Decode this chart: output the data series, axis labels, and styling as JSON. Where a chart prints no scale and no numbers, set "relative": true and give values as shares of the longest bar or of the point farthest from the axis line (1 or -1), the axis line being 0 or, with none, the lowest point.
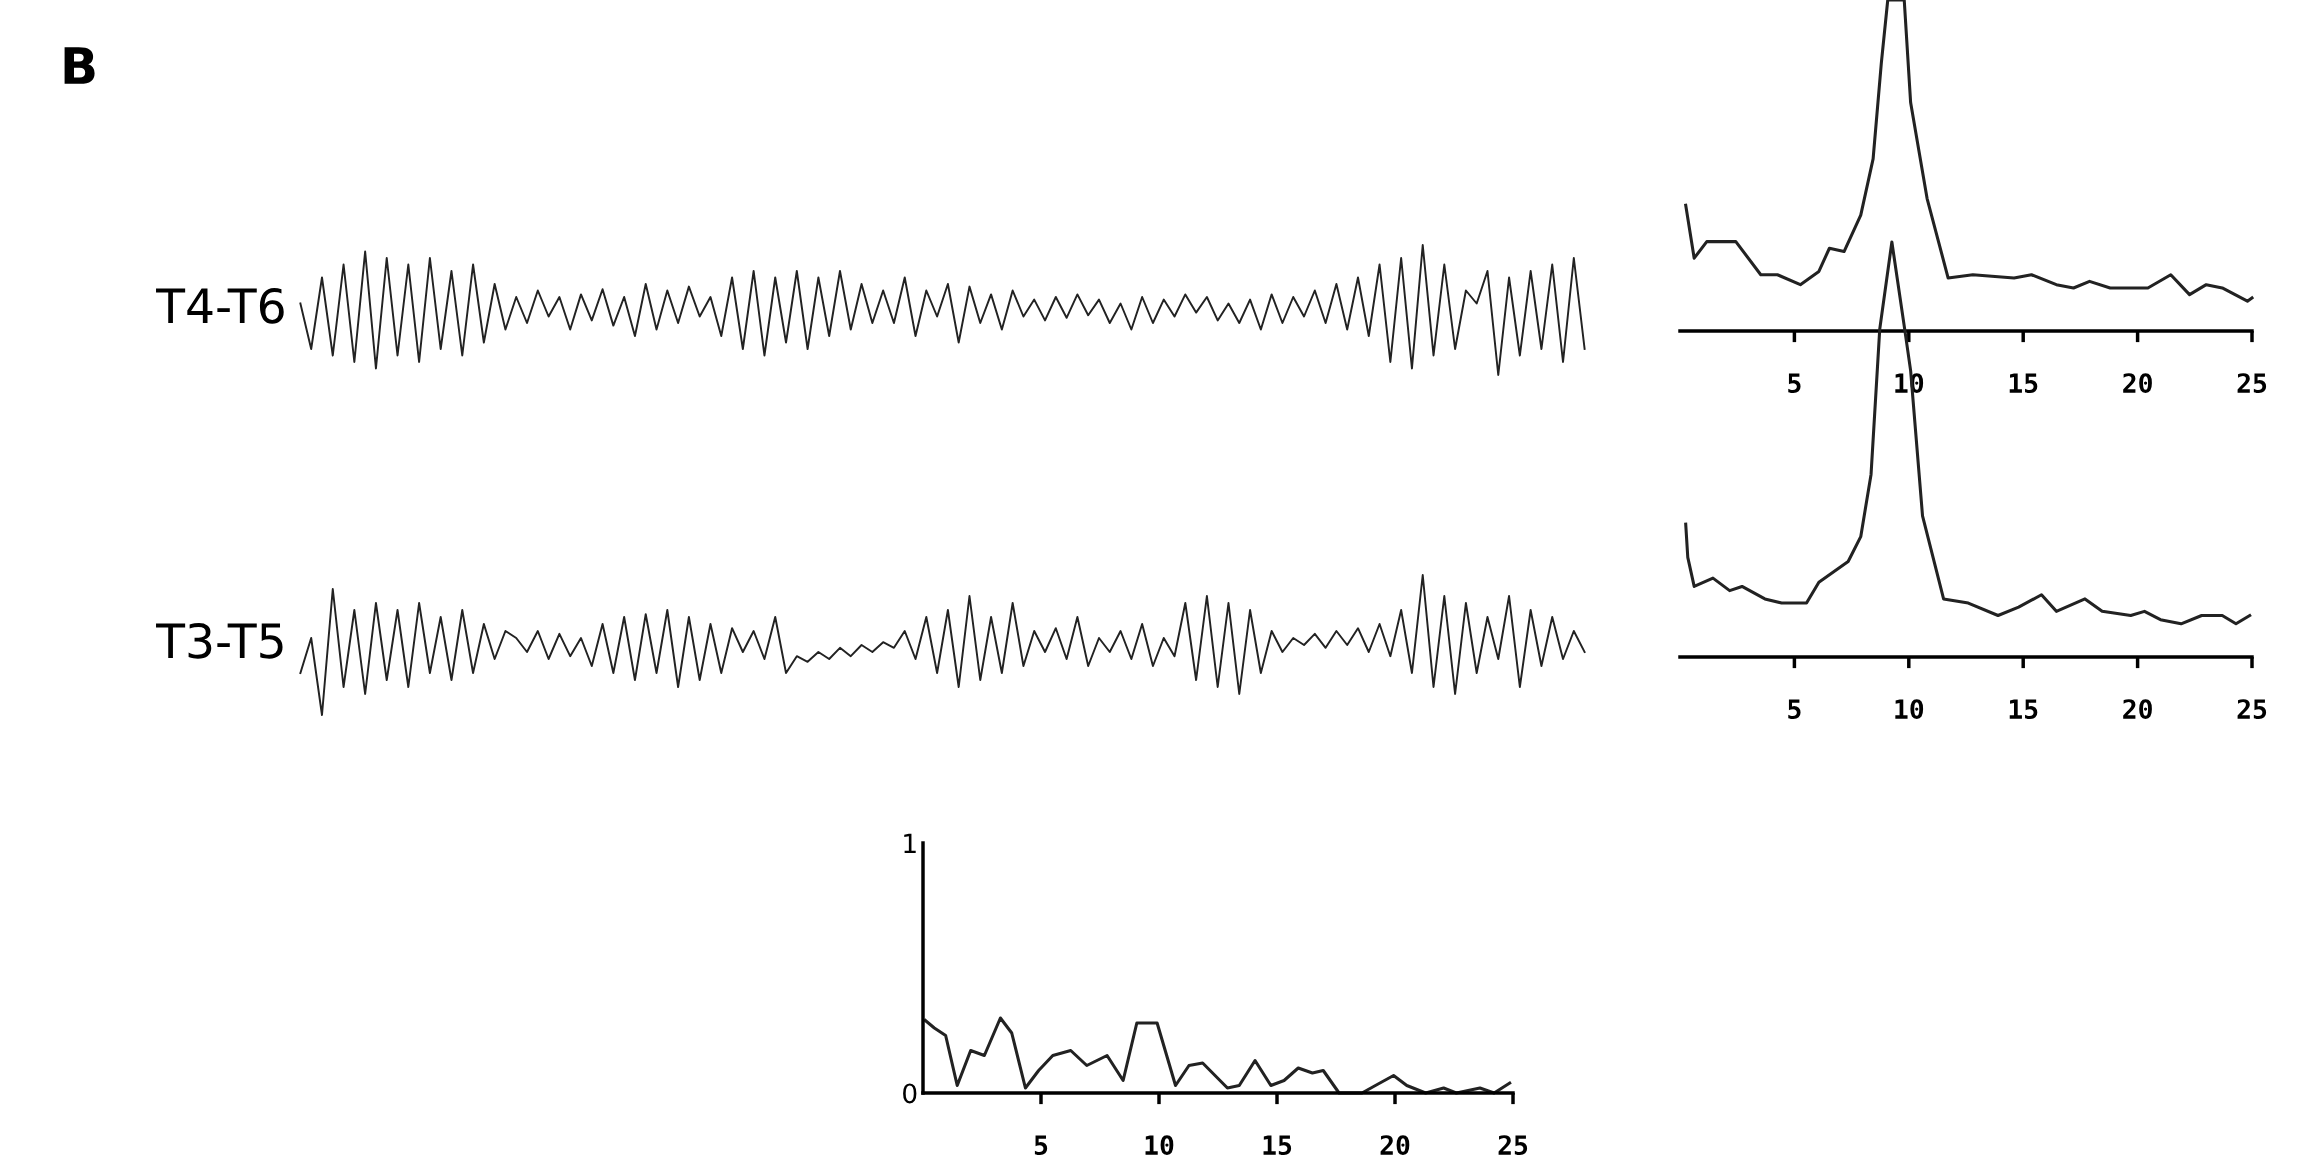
{
  "chart_data": [
    {
      "type": "line",
      "title": "B",
      "ylabel": "T4-T6",
      "relative": true,
      "tick_labels": false,
      "categories": [
        null,
        null,
        null,
        null,
        null,
        null,
        null,
        null,
        null,
        null,
        null,
        null,
        null,
        null,
        null,
        null,
        null,
        null,
        null,
        null,
        null,
        null,
        null,
        null,
        null,
        null,
        null,
        null,
        null,
        null,
        null,
        null,
        null,
        null,
        null,
        null,
        null,
        null,
        null,
        null,
        null,
        null,
        null,
        null,
        null,
        null,
        null,
        null,
        null,
        null,
        null,
        null,
        null,
        null,
        null,
        null,
        null,
        null,
        null,
        null,
        null,
        null,
        null,
        null,
        null,
        null,
        null,
        null,
        null,
        null,
        null,
        null,
        null,
        null,
        null,
        null,
        null,
        null,
        null,
        null,
        null,
        null,
        null,
        null,
        null,
        null,
        null,
        null,
        null,
        null,
        null,
        null,
        null,
        null,
        null,
        null,
        null,
        null,
        null,
        null,
        null,
        null,
        null,
        null,
        null,
        null,
        null,
        null,
        null,
        null,
        null,
        null,
        null,
        null,
        null,
        null,
        null,
        null,
        null,
        null
      ],
      "series": [
        {
          "color": "#222222",
          "values": [
            0.55,
            0.2,
            0.75,
            0.15,
            0.85,
            0.1,
            0.95,
            0.05,
            0.9,
            0.15,
            0.85,
            0.1,
            0.9,
            0.2,
            0.8,
            0.15,
            0.85,
            0.25,
            0.7,
            0.35,
            0.6,
            0.4,
            0.65,
            0.45,
            0.6,
            0.35,
            0.62,
            0.42,
            0.66,
            0.38,
            0.6,
            0.3,
            0.7,
            0.35,
            0.65,
            0.4,
            0.68,
            0.45,
            0.6,
            0.3,
            0.75,
            0.2,
            0.8,
            0.15,
            0.75,
            0.25,
            0.8,
            0.2,
            0.75,
            0.3,
            0.8,
            0.35,
            0.7,
            0.4,
            0.65,
            0.4,
            0.75,
            0.3,
            0.65,
            0.45,
            0.7,
            0.25,
            0.68,
            0.4,
            0.62,
            0.35,
            0.65,
            0.45,
            0.58,
            0.42,
            0.6,
            0.44,
            0.62,
            0.46,
            0.58,
            0.4,
            0.55,
            0.35,
            0.6,
            0.4,
            0.58,
            0.45,
            0.62,
            0.48,
            0.6,
            0.42,
            0.55,
            0.4,
            0.58,
            0.35,
            0.62,
            0.4,
            0.6,
            0.45,
            0.65,
            0.4,
            0.7,
            0.35,
            0.75,
            0.3,
            0.85,
            0.1,
            0.9,
            0.05,
            1.0,
            0.15,
            0.85,
            0.2,
            0.65,
            0.55,
            0.8,
            0.0,
            0.75,
            0.15,
            0.8,
            0.2,
            0.85,
            0.1,
            0.9,
            0.2
          ]
        }
      ]
    },
    {
      "type": "line",
      "ylabel": "T3-T5",
      "relative": true,
      "tick_labels": false,
      "categories": [
        null,
        null,
        null,
        null,
        null,
        null,
        null,
        null,
        null,
        null,
        null,
        null,
        null,
        null,
        null,
        null,
        null,
        null,
        null,
        null,
        null,
        null,
        null,
        null,
        null,
        null,
        null,
        null,
        null,
        null,
        null,
        null,
        null,
        null,
        null,
        null,
        null,
        null,
        null,
        null,
        null,
        null,
        null,
        null,
        null,
        null,
        null,
        null,
        null,
        null,
        null,
        null,
        null,
        null,
        null,
        null,
        null,
        null,
        null,
        null,
        null,
        null,
        null,
        null,
        null,
        null,
        null,
        null,
        null,
        null,
        null,
        null,
        null,
        null,
        null,
        null,
        null,
        null,
        null,
        null,
        null,
        null,
        null,
        null,
        null,
        null,
        null,
        null,
        null,
        null,
        null,
        null,
        null,
        null,
        null,
        null,
        null,
        null,
        null,
        null,
        null,
        null,
        null,
        null,
        null,
        null,
        null,
        null,
        null,
        null,
        null,
        null,
        null,
        null,
        null,
        null,
        null,
        null,
        null,
        null
      ],
      "series": [
        {
          "color": "#222222",
          "values": [
            0.3,
            0.55,
            0.0,
            0.9,
            0.2,
            0.75,
            0.15,
            0.8,
            0.25,
            0.75,
            0.2,
            0.8,
            0.3,
            0.7,
            0.25,
            0.75,
            0.3,
            0.65,
            0.4,
            0.6,
            0.55,
            0.45,
            0.6,
            0.4,
            0.58,
            0.42,
            0.55,
            0.35,
            0.65,
            0.3,
            0.7,
            0.25,
            0.72,
            0.3,
            0.75,
            0.2,
            0.7,
            0.25,
            0.65,
            0.3,
            0.62,
            0.45,
            0.6,
            0.4,
            0.7,
            0.3,
            0.42,
            0.38,
            0.45,
            0.4,
            0.48,
            0.42,
            0.5,
            0.45,
            0.52,
            0.48,
            0.6,
            0.4,
            0.7,
            0.3,
            0.75,
            0.2,
            0.85,
            0.25,
            0.7,
            0.3,
            0.8,
            0.35,
            0.6,
            0.45,
            0.62,
            0.4,
            0.7,
            0.35,
            0.55,
            0.45,
            0.6,
            0.4,
            0.65,
            0.35,
            0.55,
            0.42,
            0.8,
            0.25,
            0.85,
            0.2,
            0.8,
            0.15,
            0.75,
            0.3,
            0.6,
            0.45,
            0.55,
            0.5,
            0.58,
            0.48,
            0.6,
            0.5,
            0.62,
            0.45,
            0.65,
            0.42,
            0.75,
            0.3,
            1.0,
            0.2,
            0.85,
            0.15,
            0.8,
            0.3,
            0.7,
            0.4,
            0.85,
            0.2,
            0.75,
            0.35,
            0.7,
            0.4,
            0.6,
            0.45
          ]
        }
      ]
    },
    {
      "type": "line",
      "relative": true,
      "tick_labels": "x",
      "xlim": [
        0,
        25
      ],
      "xticks": [
        5,
        10,
        15,
        20,
        25
      ],
      "series": [
        {
          "color": "#222222",
          "x": [
            0.25,
            0.62,
            1.17,
            2.44,
            3.53,
            4.26,
            5.26,
            6.07,
            6.53,
            7.17,
            7.9,
            8.44,
            8.8,
            9.08,
            9.8,
            10.08,
            10.8,
            11.72,
            12.8,
            14.6,
            15.36,
            16.45,
            17.2,
            17.9,
            18.8,
            20.45,
            21.45,
            22.27,
            23.0,
            23.7,
            24.8,
            25.0
          ],
          "values": [
            0.38,
            0.22,
            0.27,
            0.27,
            0.17,
            0.17,
            0.14,
            0.18,
            0.25,
            0.24,
            0.35,
            0.52,
            0.81,
            1.0,
            1.0,
            0.69,
            0.4,
            0.16,
            0.17,
            0.16,
            0.17,
            0.14,
            0.13,
            0.15,
            0.13,
            0.13,
            0.17,
            0.11,
            0.14,
            0.13,
            0.09,
            0.1
          ]
        }
      ]
    },
    {
      "type": "line",
      "relative": true,
      "tick_labels": "x",
      "xlim": [
        0,
        25
      ],
      "xticks": [
        5,
        10,
        15,
        20,
        25
      ],
      "series": [
        {
          "color": "#222222",
          "x": [
            0.25,
            0.34,
            0.62,
            1.44,
            2.17,
            2.71,
            3.71,
            4.44,
            5.53,
            6.07,
            7.35,
            7.9,
            8.35,
            8.73,
            9.26,
            9.82,
            10.08,
            10.6,
            11.52,
            12.6,
            13.9,
            14.8,
            15.8,
            16.45,
            17.7,
            18.45,
            19.7,
            20.3,
            21.0,
            21.9,
            22.8,
            23.7,
            24.3,
            24.9
          ],
          "values": [
            0.32,
            0.24,
            0.17,
            0.19,
            0.16,
            0.17,
            0.14,
            0.13,
            0.13,
            0.18,
            0.23,
            0.29,
            0.44,
            0.79,
            1.0,
            0.79,
            0.69,
            0.34,
            0.14,
            0.13,
            0.1,
            0.12,
            0.15,
            0.11,
            0.14,
            0.11,
            0.1,
            0.11,
            0.09,
            0.08,
            0.1,
            0.1,
            0.08,
            0.1
          ]
        }
      ]
    },
    {
      "type": "line",
      "xlim": [
        0,
        25
      ],
      "xticks": [
        5,
        10,
        15,
        20,
        25
      ],
      "ylim": [
        0,
        1
      ],
      "yticks": [
        0,
        1
      ],
      "series": [
        {
          "color": "#222222",
          "x": [
            0.1,
            0.48,
            0.96,
            1.45,
            2.02,
            2.6,
            3.28,
            3.76,
            4.34,
            4.9,
            5.5,
            6.26,
            6.94,
            7.8,
            8.48,
            9.06,
            9.92,
            10.7,
            11.27,
            11.85,
            12.9,
            13.4,
            14.07,
            14.74,
            15.3,
            15.9,
            16.5,
            16.96,
            17.63,
            18.6,
            19.17,
            19.94,
            20.5,
            21.3,
            22.06,
            22.6,
            23.6,
            24.2,
            24.86
          ],
          "values": [
            0.29,
            0.26,
            0.23,
            0.03,
            0.17,
            0.15,
            0.3,
            0.24,
            0.02,
            0.09,
            0.15,
            0.17,
            0.11,
            0.15,
            0.05,
            0.28,
            0.28,
            0.03,
            0.11,
            0.12,
            0.02,
            0.03,
            0.13,
            0.03,
            0.05,
            0.1,
            0.08,
            0.09,
            0.0,
            0.0,
            0.03,
            0.07,
            0.03,
            0.0,
            0.02,
            0.0,
            0.02,
            0.0,
            0.04
          ]
        }
      ]
    }
  ]
}
